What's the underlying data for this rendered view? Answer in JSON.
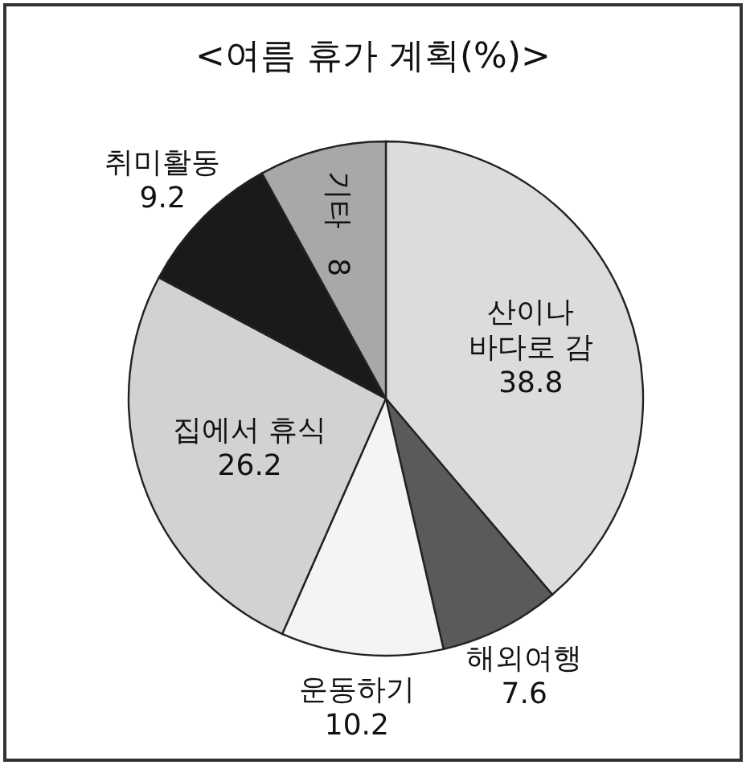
{
  "chart_data": {
    "type": "pie",
    "title": "<여름 휴가 계획(%)>",
    "categories": [
      "산이나 바다로 감",
      "해외여행",
      "운동하기",
      "집에서 휴식",
      "취미활동",
      "기타"
    ],
    "values": [
      38.8,
      7.6,
      10.2,
      26.2,
      9.2,
      8
    ],
    "colors": [
      "#dcdcdc",
      "#5a5a5a",
      "#f4f4f4",
      "#d2d2d2",
      "#1a1a1a",
      "#a8a8a8"
    ],
    "data_labels": true,
    "legend": false
  }
}
